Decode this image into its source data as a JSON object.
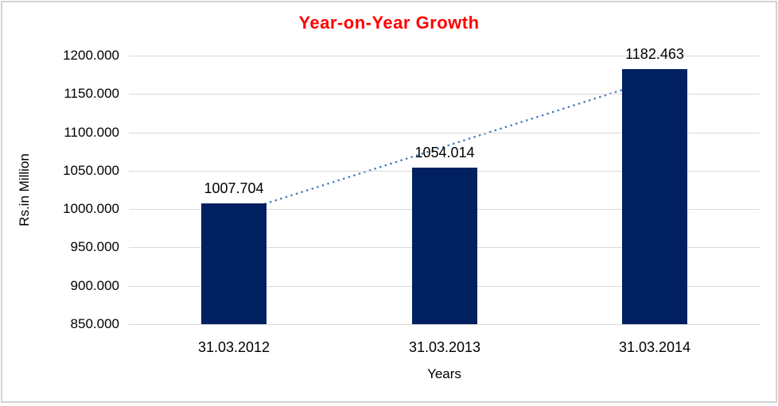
{
  "window": {
    "background_color": "#ffffff",
    "frame_border_color": "#d2d2d2"
  },
  "chart_data": {
    "type": "bar",
    "title": "Year-on-Year Growth",
    "title_color": "#ff0000",
    "categories": [
      "31.03.2012",
      "31.03.2013",
      "31.03.2014"
    ],
    "values": [
      1007.704,
      1054.014,
      1182.463
    ],
    "data_labels": [
      "1007.704",
      "1054.014",
      "1182.463"
    ],
    "xlabel": "Years",
    "ylabel": "Rs.in Million",
    "ylim": [
      850,
      1200
    ],
    "ytick_step": 50,
    "ytick_labels": [
      "1200.000",
      "1150.000",
      "1100.000",
      "1050.000",
      "1000.000",
      "950.000",
      "900.000",
      "850.000"
    ],
    "grid": true,
    "legend": "none",
    "bar_color": "#002060",
    "gridline_color": "#d9d9d9",
    "text_color": "#000000",
    "trendline": {
      "type": "linear",
      "style": "dotted",
      "color": "#4a7ebb"
    }
  }
}
